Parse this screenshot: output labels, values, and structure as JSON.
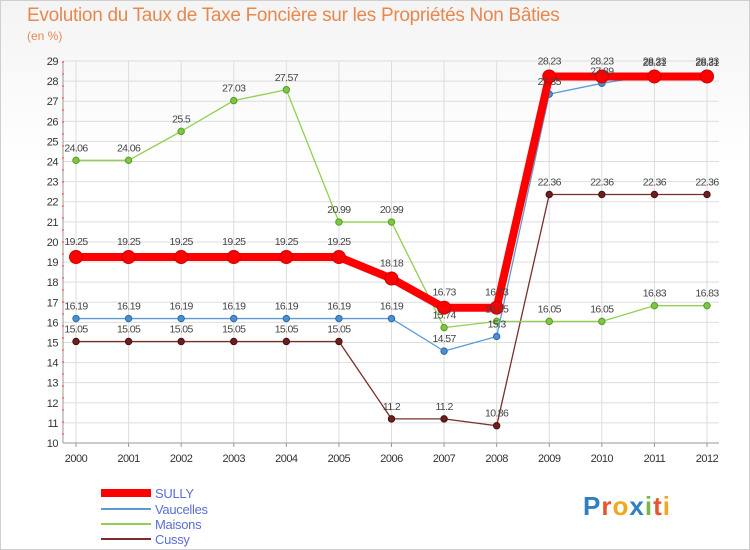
{
  "header": {
    "title": "Evolution du Taux de Taxe Foncière sur les Propriétés Non Bâties",
    "subtitle": "(en %)"
  },
  "logo": {
    "text": "Proxiti",
    "letters": [
      "P",
      "r",
      "o",
      "x",
      "i",
      "t",
      "i"
    ],
    "colors": [
      "#2f7fc1",
      "#e4572e",
      "#f0a81e",
      "#2f7fc1",
      "#7ab648",
      "#e4572e",
      "#f0a81e"
    ]
  },
  "chart_data": {
    "type": "line",
    "title": "Evolution du Taux de Taxe Foncière sur les Propriétés Non Bâties",
    "ylabel": "(en %)",
    "xlabel": "",
    "categories": [
      "2000",
      "2001",
      "2002",
      "2003",
      "2004",
      "2005",
      "2006",
      "2007",
      "2008",
      "2009",
      "2010",
      "2011",
      "2012"
    ],
    "ylim": [
      10,
      29
    ],
    "yticks": [
      "10",
      "11",
      "12",
      "13",
      "14",
      "15",
      "16",
      "17",
      "18",
      "19",
      "20",
      "21",
      "22",
      "23",
      "24",
      "25",
      "26",
      "27",
      "28",
      "29"
    ],
    "grid": true,
    "legend_position": "bottom-left",
    "series": [
      {
        "name": "SULLY",
        "color": "#ff0000",
        "values": [
          19.25,
          19.25,
          19.25,
          19.25,
          19.25,
          19.25,
          18.18,
          16.73,
          16.73,
          28.23,
          28.23,
          28.23,
          28.23
        ],
        "labels": [
          "19.25",
          "19.25",
          "19.25",
          "19.25",
          "19.25",
          "19.25",
          "18.18",
          "16.73",
          "16.73",
          "28.23",
          "28.23",
          "28.23",
          "28.23"
        ]
      },
      {
        "name": "Vaucelles",
        "color": "#5b9bd5",
        "values": [
          16.19,
          16.19,
          16.19,
          16.19,
          16.19,
          16.19,
          16.19,
          14.57,
          15.3,
          27.35,
          27.89,
          28.31,
          28.31
        ],
        "labels": [
          "16.19",
          "16.19",
          "16.19",
          "16.19",
          "16.19",
          "16.19",
          "16.19",
          "14.57",
          "15.3",
          "27.35",
          "27.89",
          "28.31",
          "28.31"
        ]
      },
      {
        "name": "Maisons",
        "color": "#92d050",
        "values": [
          24.06,
          24.06,
          25.5,
          27.03,
          27.57,
          20.99,
          20.99,
          15.74,
          16.05,
          16.05,
          16.05,
          16.83,
          16.83
        ],
        "labels": [
          "24.06",
          "24.06",
          "25.5",
          "27.03",
          "27.57",
          "20.99",
          "20.99",
          "15.74",
          "16.05",
          "16.05",
          "16.05",
          "16.83",
          "16.83"
        ]
      },
      {
        "name": "Cussy",
        "color": "#7b2d2d",
        "values": [
          15.05,
          15.05,
          15.05,
          15.05,
          15.05,
          15.05,
          11.2,
          11.2,
          10.86,
          22.36,
          22.36,
          22.36,
          22.36
        ],
        "labels": [
          "15.05",
          "15.05",
          "15.05",
          "15.05",
          "15.05",
          "15.05",
          "11.2",
          "11.2",
          "10.86",
          "22.36",
          "22.36",
          "22.36",
          "22.36"
        ]
      }
    ]
  }
}
